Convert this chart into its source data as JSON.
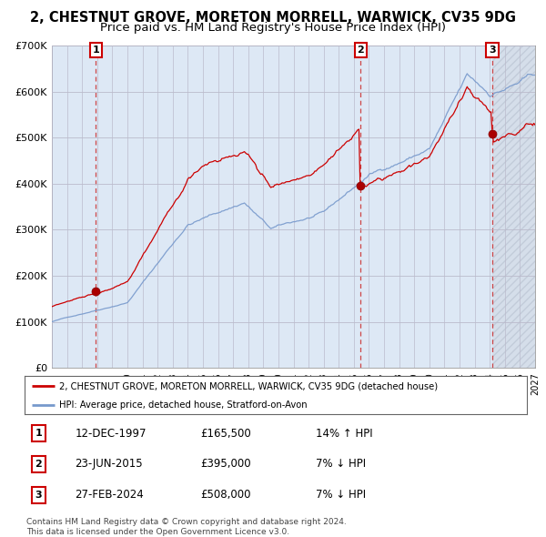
{
  "title": "2, CHESTNUT GROVE, MORETON MORRELL, WARWICK, CV35 9DG",
  "subtitle": "Price paid vs. HM Land Registry's House Price Index (HPI)",
  "ylim": [
    0,
    700000
  ],
  "yticks": [
    0,
    100000,
    200000,
    300000,
    400000,
    500000,
    600000,
    700000
  ],
  "sale_dates_num": [
    1997.917,
    2015.458,
    2024.167
  ],
  "sale_prices": [
    165500,
    395000,
    508000
  ],
  "sale_labels": [
    "1",
    "2",
    "3"
  ],
  "sale_info": [
    {
      "label": "1",
      "date": "12-DEC-1997",
      "price": "£165,500",
      "hpi": "14% ↑ HPI"
    },
    {
      "label": "2",
      "date": "23-JUN-2015",
      "price": "£395,000",
      "hpi": "7% ↓ HPI"
    },
    {
      "label": "3",
      "date": "27-FEB-2024",
      "price": "£508,000",
      "hpi": "7% ↓ HPI"
    }
  ],
  "legend_line1": "2, CHESTNUT GROVE, MORETON MORRELL, WARWICK, CV35 9DG (detached house)",
  "legend_line2": "HPI: Average price, detached house, Stratford-on-Avon",
  "footer": "Contains HM Land Registry data © Crown copyright and database right 2024.\nThis data is licensed under the Open Government Licence v3.0.",
  "line_color_red": "#cc0000",
  "line_color_blue": "#7799cc",
  "bg_fill_color": "#dde8f5",
  "bg_hatch_color": "#c0cfe0",
  "grid_color": "#bbbbcc",
  "sale_marker_color": "#aa0000",
  "sale_vline_color": "#cc3333",
  "title_fontsize": 10.5,
  "subtitle_fontsize": 9.5
}
